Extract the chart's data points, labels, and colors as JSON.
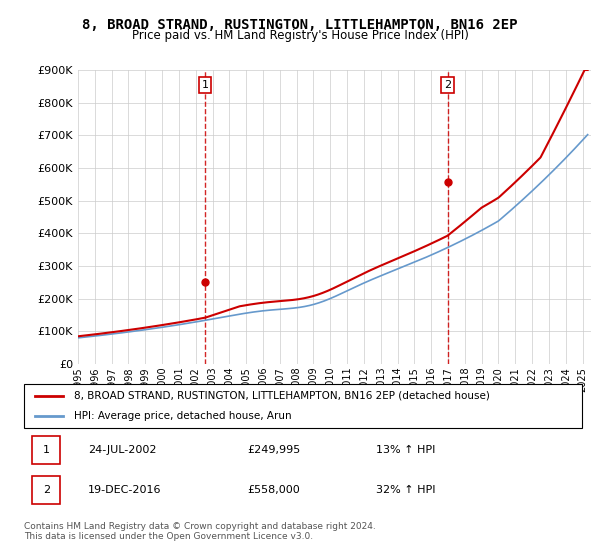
{
  "title": "8, BROAD STRAND, RUSTINGTON, LITTLEHAMPTON, BN16 2EP",
  "subtitle": "Price paid vs. HM Land Registry's House Price Index (HPI)",
  "legend_line1": "8, BROAD STRAND, RUSTINGTON, LITTLEHAMPTON, BN16 2EP (detached house)",
  "legend_line2": "HPI: Average price, detached house, Arun",
  "annotation1_label": "1",
  "annotation1_date": "24-JUL-2002",
  "annotation1_price": "£249,995",
  "annotation1_hpi": "13% ↑ HPI",
  "annotation2_label": "2",
  "annotation2_date": "19-DEC-2016",
  "annotation2_price": "£558,000",
  "annotation2_hpi": "32% ↑ HPI",
  "footer": "Contains HM Land Registry data © Crown copyright and database right 2024.\nThis data is licensed under the Open Government Licence v3.0.",
  "sale1_x": 2002.56,
  "sale1_y": 249995,
  "sale2_x": 2016.97,
  "sale2_y": 558000,
  "ylim": [
    0,
    900000
  ],
  "xlim_start": 1995.0,
  "xlim_end": 2025.5,
  "red_color": "#cc0000",
  "blue_color": "#6699cc",
  "background_color": "#ffffff",
  "grid_color": "#cccccc"
}
